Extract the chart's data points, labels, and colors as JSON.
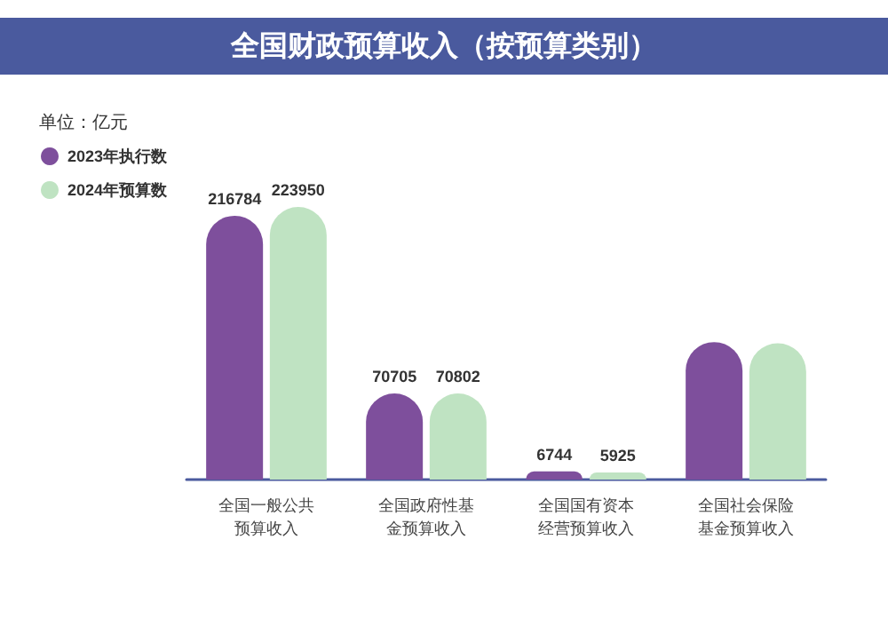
{
  "chart_data": {
    "type": "bar",
    "title": "全国财政预算收入（按预算类别）",
    "annotations": [
      "单位：亿元"
    ],
    "categories": [
      "全国一般公共预算收入",
      "全国政府性基金预算收入",
      "全国国有资本经营预算收入",
      "全国社会保险基金预算收入"
    ],
    "series": [
      {
        "name": "2023年执行数",
        "color": "#7e4f9c",
        "values": [
          216784,
          70705,
          6744,
          113000
        ],
        "value_labels": [
          "216784",
          "70705",
          "6744",
          null
        ]
      },
      {
        "name": "2024年预算数",
        "color": "#bfe3c2",
        "values": [
          223950,
          70802,
          5925,
          112000
        ],
        "value_labels": [
          "223950",
          "70802",
          "5925",
          null
        ]
      }
    ],
    "legend": "top left"
  }
}
